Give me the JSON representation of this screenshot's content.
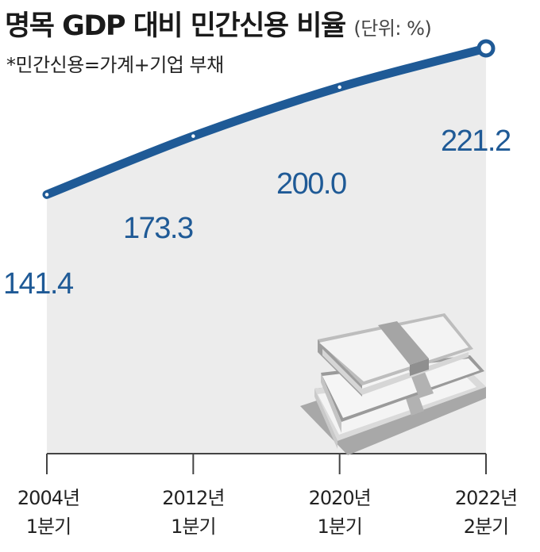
{
  "header": {
    "title": "명목 GDP 대비 민간신용 비율",
    "unit": "(단위: %)",
    "subtitle": "*민간신용=가계+기업 부채"
  },
  "chart_data": {
    "type": "line",
    "title": "명목 GDP 대비 민간신용 비율",
    "unit": "%",
    "categories": [
      [
        "2004년",
        "1분기"
      ],
      [
        "2012년",
        "1분기"
      ],
      [
        "2020년",
        "1분기"
      ],
      [
        "2022년",
        "2분기"
      ]
    ],
    "series": [
      {
        "values": [
          141.4,
          173.3,
          200.0,
          221.2
        ],
        "labels": [
          "141.4",
          "173.3",
          "200.0",
          "221.2"
        ]
      }
    ],
    "ylim": [
      0,
      232
    ],
    "grid": false,
    "colors": {
      "line": "#1f5a96",
      "area": "#ececec",
      "axis": "#444444"
    },
    "illustration": "stacked-banknotes-icon"
  }
}
